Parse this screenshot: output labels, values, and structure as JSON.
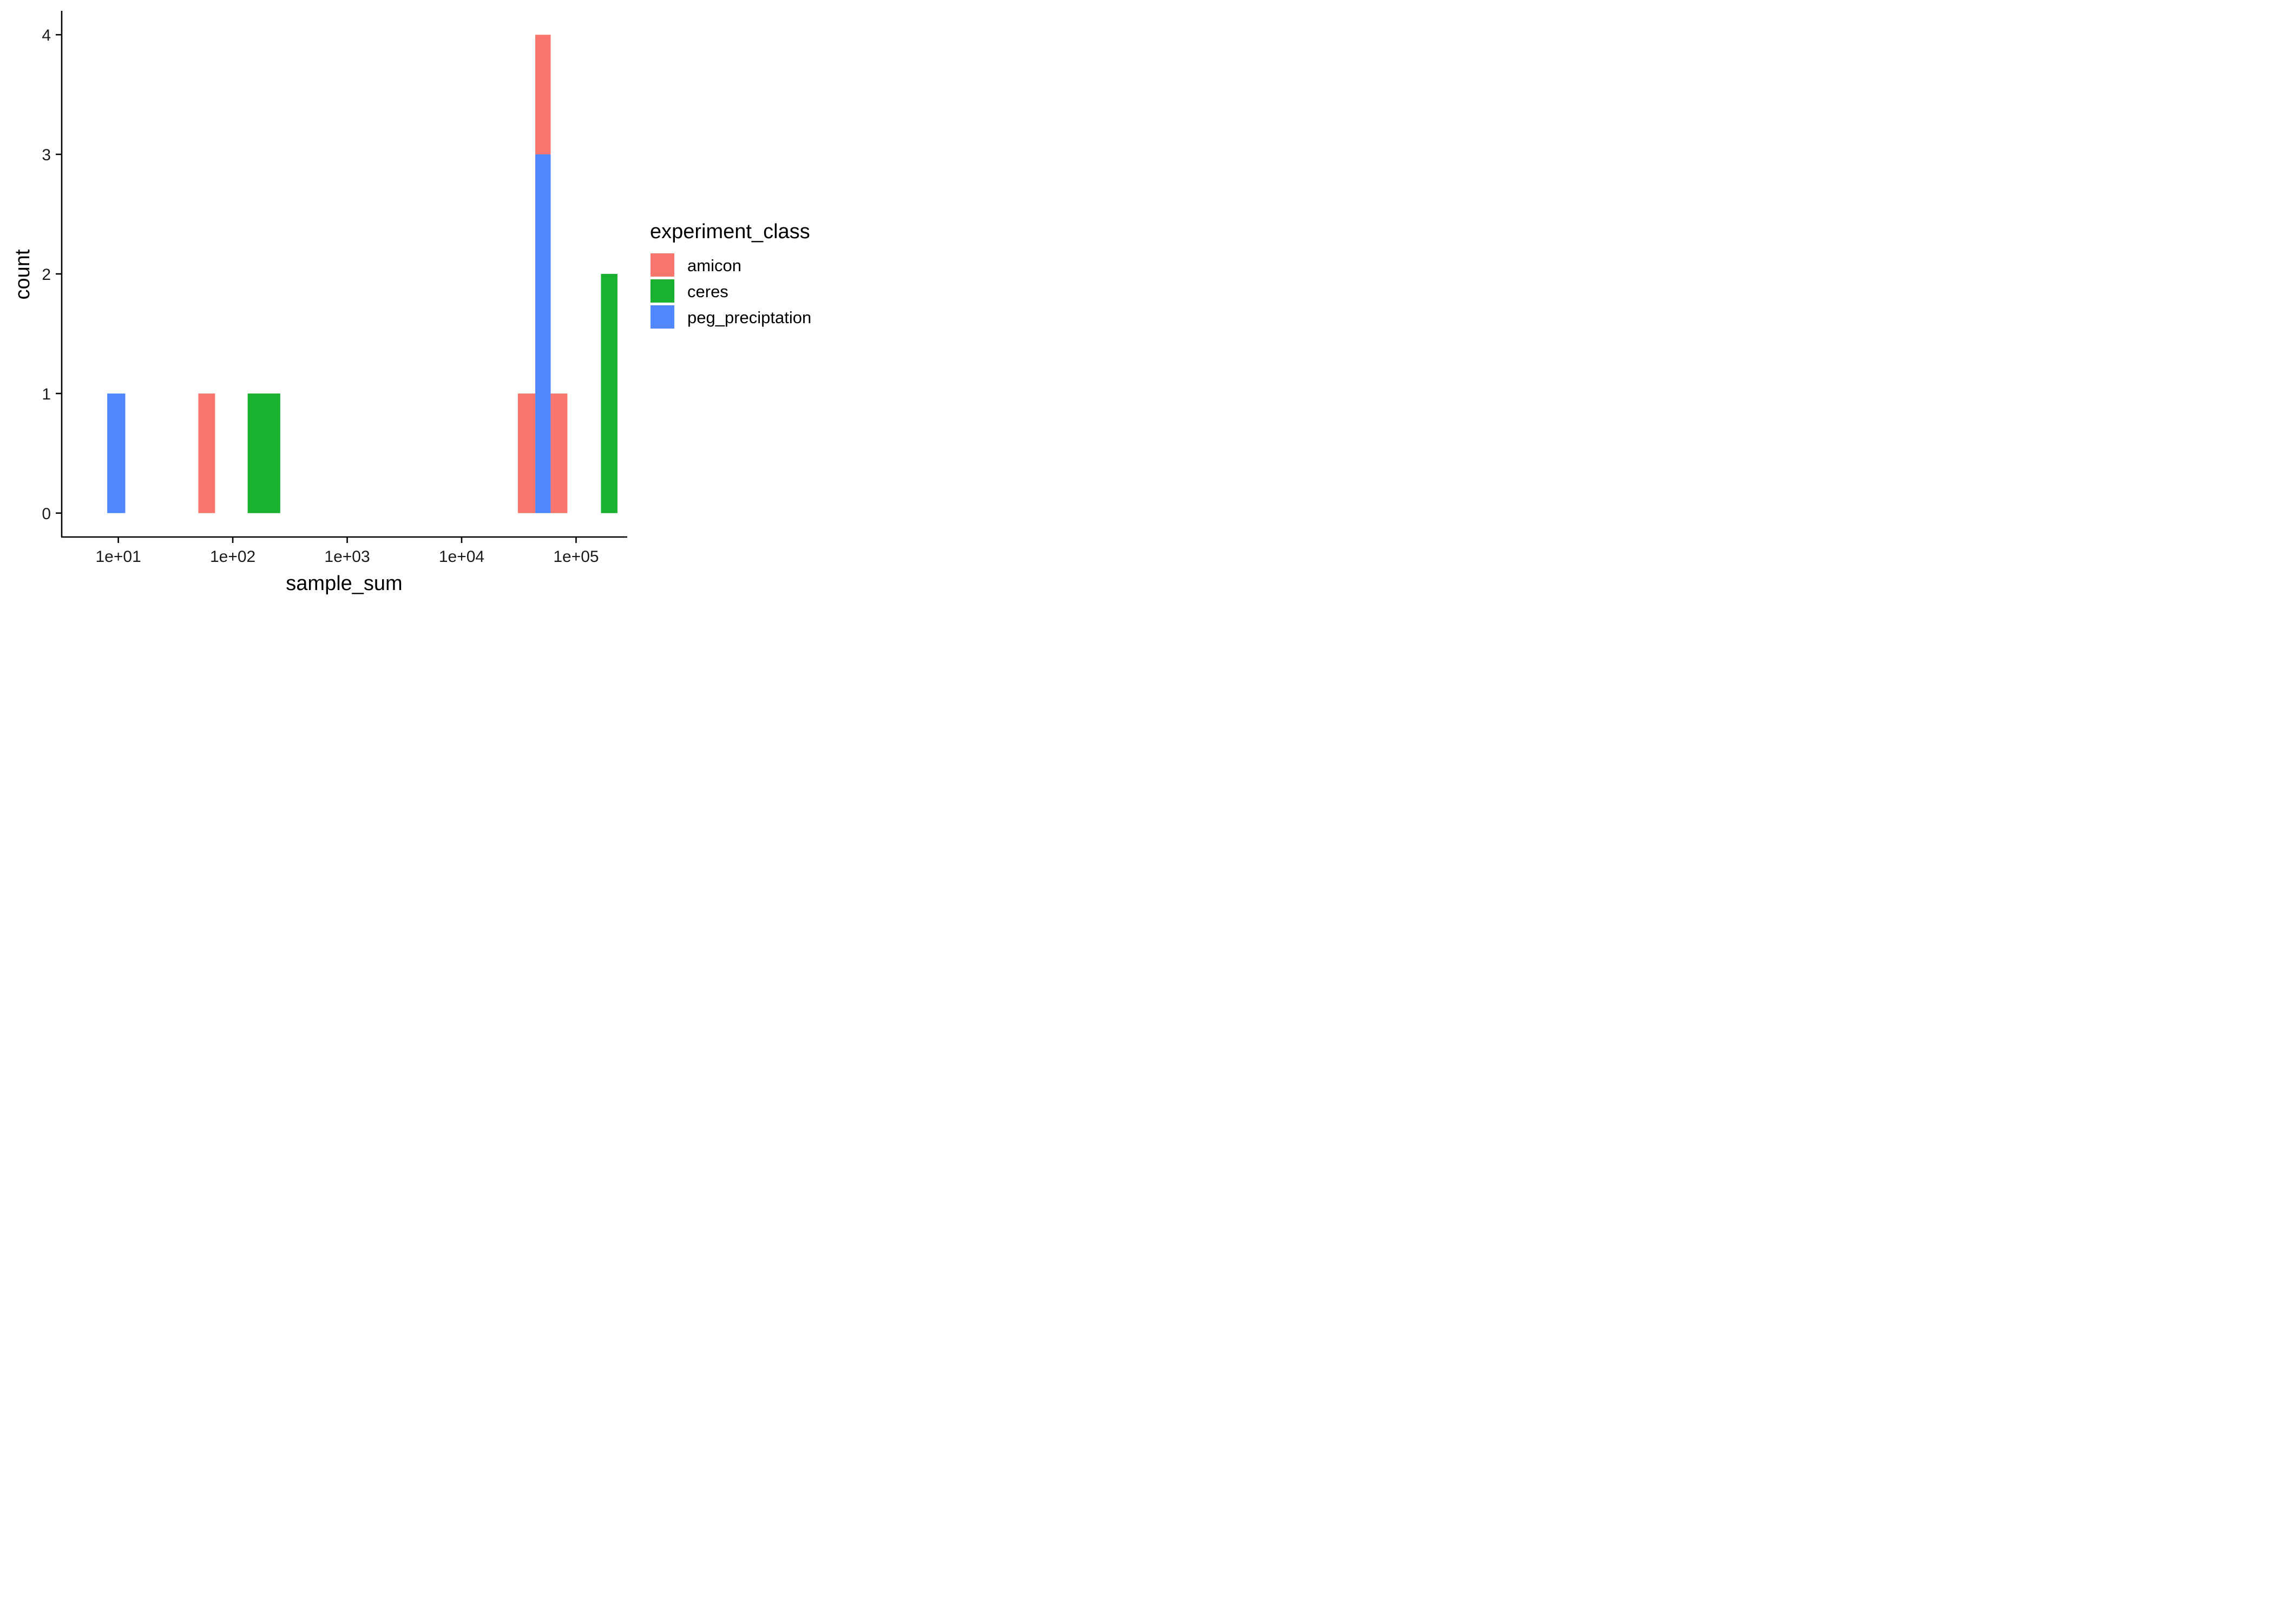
{
  "chart_data": {
    "type": "bar",
    "subtype": "stacked-histogram",
    "x_scale": "log10",
    "xlabel": "sample_sum",
    "ylabel": "count",
    "x_ticks": [
      {
        "value": 10,
        "label": "1e+01"
      },
      {
        "value": 100,
        "label": "1e+02"
      },
      {
        "value": 1000,
        "label": "1e+03"
      },
      {
        "value": 10000,
        "label": "1e+04"
      },
      {
        "value": 100000,
        "label": "1e+05"
      }
    ],
    "y_ticks": [
      0,
      1,
      2,
      3,
      4
    ],
    "xlim": [
      3.2,
      280000
    ],
    "ylim": [
      -0.2,
      4.2
    ],
    "grid": false,
    "legend": {
      "title": "experiment_class",
      "position": "right"
    },
    "series": [
      {
        "name": "amicon",
        "color": "#F8766D",
        "bins": [
          {
            "x_from": 50,
            "x_to": 70,
            "count": 1
          },
          {
            "x_from": 31000,
            "x_to": 44000,
            "count": 1
          },
          {
            "x_from": 44000,
            "x_to": 60000,
            "count": 1
          },
          {
            "x_from": 60000,
            "x_to": 84000,
            "count": 1
          }
        ]
      },
      {
        "name": "ceres",
        "color": "#19B12F",
        "bins": [
          {
            "x_from": 135,
            "x_to": 190,
            "count": 1
          },
          {
            "x_from": 190,
            "x_to": 260,
            "count": 1
          },
          {
            "x_from": 165000,
            "x_to": 230000,
            "count": 2
          }
        ]
      },
      {
        "name": "peg_preciptation",
        "color": "#5087FF",
        "bins": [
          {
            "x_from": 8,
            "x_to": 11.5,
            "count": 1
          },
          {
            "x_from": 44000,
            "x_to": 60000,
            "count": 3
          }
        ]
      }
    ]
  }
}
